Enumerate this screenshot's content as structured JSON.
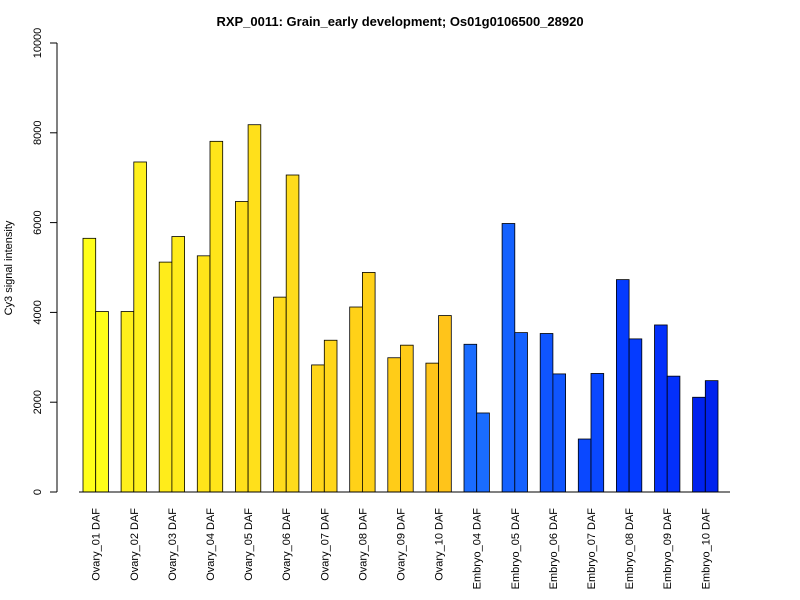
{
  "chart_data": {
    "type": "bar",
    "title": "RXP_0011: Grain_early development; Os01g0106500_28920",
    "xlabel": "",
    "ylabel": "Cy3 signal intensity",
    "ylim": [
      0,
      10000
    ],
    "yticks": [
      0,
      2000,
      4000,
      6000,
      8000,
      10000
    ],
    "grid": false,
    "legend": "none",
    "categories": [
      "Ovary_01 DAF",
      "Ovary_02 DAF",
      "Ovary_03 DAF",
      "Ovary_04 DAF",
      "Ovary_05 DAF",
      "Ovary_06 DAF",
      "Ovary_07 DAF",
      "Ovary_08 DAF",
      "Ovary_09 DAF",
      "Ovary_10 DAF",
      "Embryo_04 DAF",
      "Embryo_05 DAF",
      "Embryo_06 DAF",
      "Embryo_07 DAF",
      "Embryo_08 DAF",
      "Embryo_09 DAF",
      "Embryo_10 DAF"
    ],
    "series": [
      {
        "values": [
          5650,
          4020,
          5120,
          5260,
          6470,
          4340,
          2830,
          4120,
          2990,
          2870,
          3290,
          5980,
          3530,
          1180,
          4730,
          3720,
          2110
        ]
      },
      {
        "values": [
          4020,
          7350,
          5690,
          7810,
          8180,
          7060,
          3380,
          4890,
          3270,
          3930,
          1760,
          3550,
          2630,
          2640,
          3410,
          2580,
          2480
        ]
      }
    ],
    "colors": [
      "#ffff19",
      "#fff01c",
      "#ffec1b",
      "#ffe51a",
      "#ffe01b",
      "#ffdc1c",
      "#ffd61a",
      "#ffd118",
      "#ffcc18",
      "#ffc41a",
      "#1a6cff",
      "#1461ff",
      "#0f55ff",
      "#0a48ff",
      "#053bff",
      "#0330fb",
      "#0022ee"
    ]
  }
}
